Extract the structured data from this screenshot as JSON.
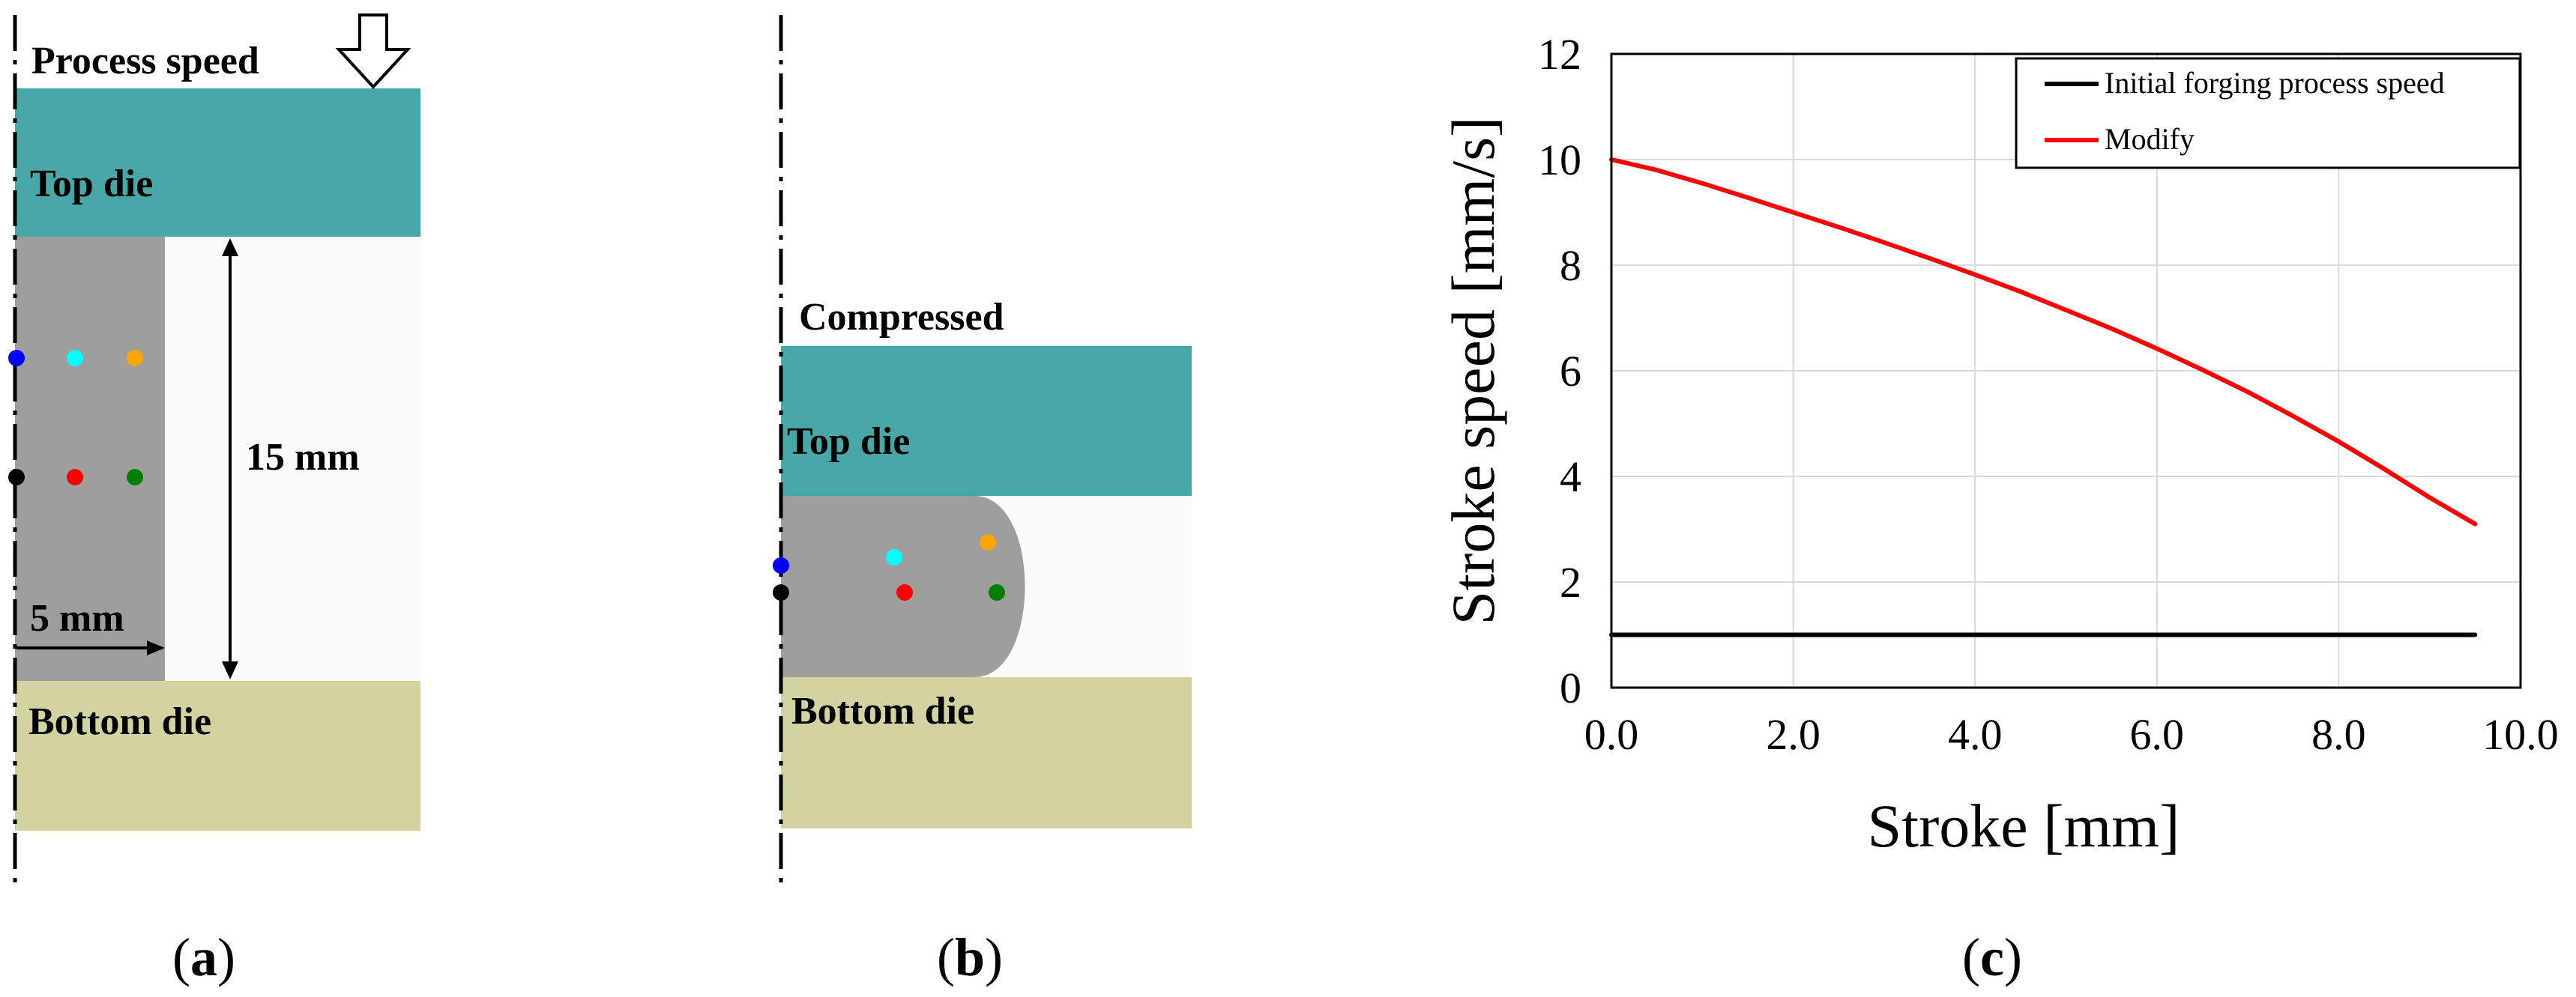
{
  "panel_a": {
    "speed_label": "Process speed",
    "top_die_label": "Top die",
    "bottom_die_label": "Bottom die",
    "height_label": "15 mm",
    "radius_label": "5 mm",
    "caption_open": "(",
    "caption_letter": "a",
    "caption_close": ")"
  },
  "panel_b": {
    "state_label": "Compressed",
    "top_die_label": "Top die",
    "bottom_die_label": "Bottom die",
    "caption_open": "(",
    "caption_letter": "b",
    "caption_close": ")"
  },
  "panel_c": {
    "caption_open": "(",
    "caption_letter": "c",
    "caption_close": ")"
  },
  "colors": {
    "top_die": "#48a8a8",
    "bottom_die": "#d3d3a2",
    "billet": "#9e9e9e",
    "series_initial": "#000000",
    "series_modify": "#ff0000"
  },
  "chart_data": {
    "type": "line",
    "title": "",
    "xlabel": "Stroke [mm]",
    "ylabel": "Stroke speed [mm/s]",
    "xlim": [
      0,
      10
    ],
    "ylim": [
      0,
      12
    ],
    "x_ticks": [
      "0.0",
      "2.0",
      "4.0",
      "6.0",
      "8.0",
      "10.0"
    ],
    "y_ticks": [
      "0",
      "2",
      "4",
      "6",
      "8",
      "10",
      "12"
    ],
    "grid": true,
    "legend_position": "top-right",
    "series": [
      {
        "name": "Initial forging process speed",
        "color": "#000000",
        "x": [
          0,
          9.5
        ],
        "y": [
          1,
          1
        ]
      },
      {
        "name": "Modify",
        "color": "#ff0000",
        "x": [
          0,
          0.5,
          1,
          1.5,
          2,
          2.5,
          3,
          3.5,
          4,
          4.5,
          5,
          5.5,
          6,
          6.5,
          7,
          7.5,
          8,
          8.5,
          9,
          9.5
        ],
        "y": [
          10.0,
          9.8,
          9.55,
          9.28,
          9.0,
          8.72,
          8.43,
          8.13,
          7.82,
          7.5,
          7.15,
          6.8,
          6.42,
          6.02,
          5.6,
          5.14,
          4.66,
          4.14,
          3.6,
          3.1
        ]
      }
    ]
  }
}
